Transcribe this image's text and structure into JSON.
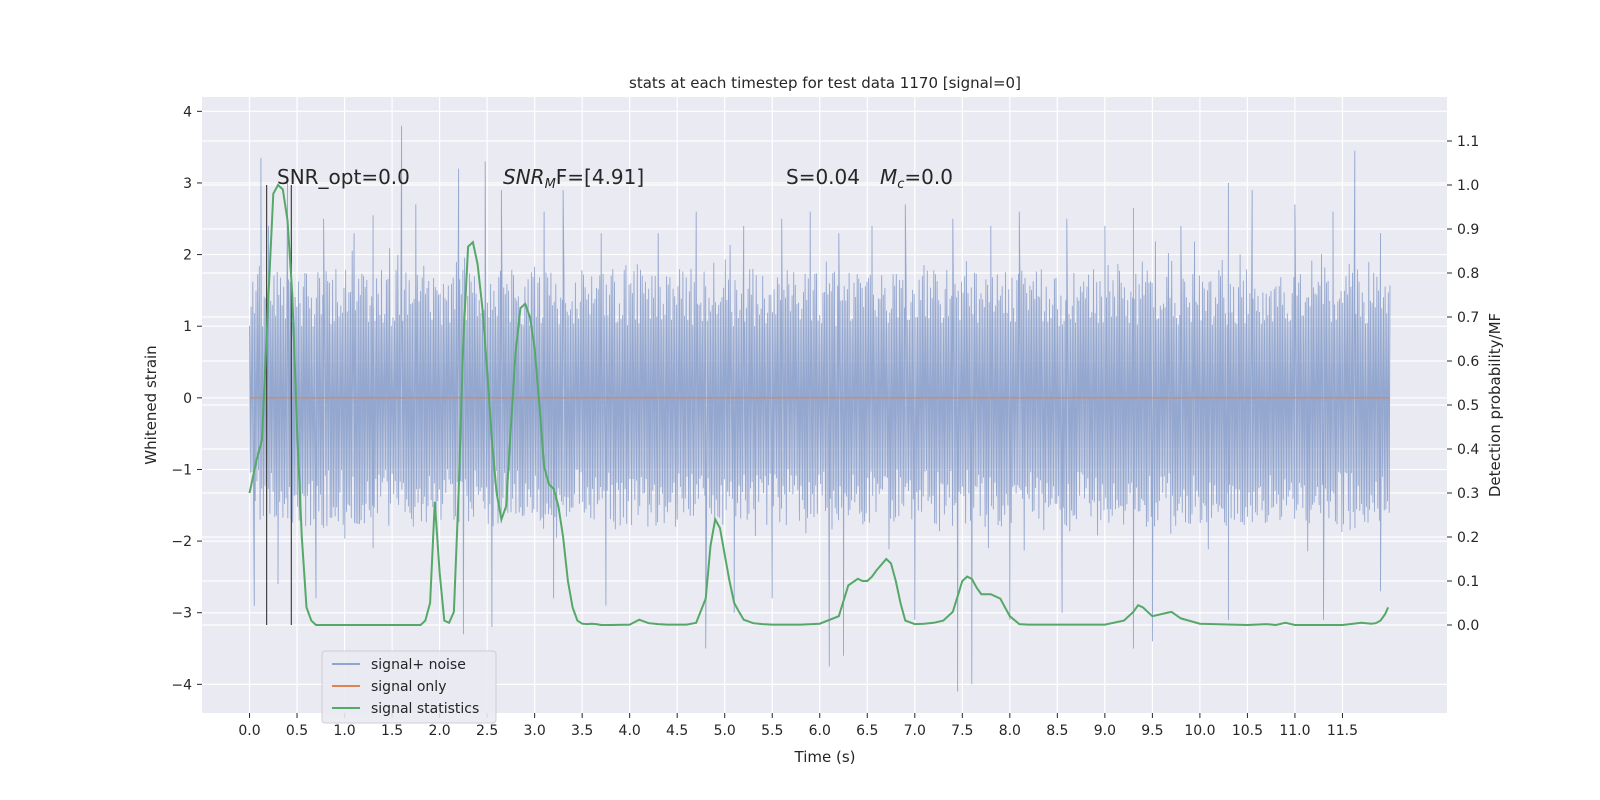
{
  "chart_data": {
    "type": "line",
    "title": "stats at each timestep for test data 1170 [signal=0]",
    "xlabel": "Time (s)",
    "ylabel": "Whitened strain",
    "y2label": "Detection probability/MF",
    "xlim": [
      -0.5,
      12.6
    ],
    "ylim": [
      -4.4,
      4.2
    ],
    "y2lim": [
      -0.2,
      1.2
    ],
    "grid": true,
    "legend_position": "lower-left",
    "x_ticks": [
      0.0,
      0.5,
      1.0,
      1.5,
      2.0,
      2.5,
      3.0,
      3.5,
      4.0,
      4.5,
      5.0,
      5.5,
      6.0,
      6.5,
      7.0,
      7.5,
      8.0,
      8.5,
      9.0,
      9.5,
      10.0,
      10.5,
      11.0,
      11.5
    ],
    "x_tick_labels": [
      "0.0",
      "0.5",
      "1.0",
      "1.5",
      "2.0",
      "2.5",
      "3.0",
      "3.5",
      "4.0",
      "4.5",
      "5.0",
      "5.5",
      "6.0",
      "6.5",
      "7.0",
      "7.5",
      "8.0",
      "8.5",
      "9.0",
      "9.5",
      "10.0",
      "10.5",
      "11.0",
      "11.5"
    ],
    "y_ticks": [
      -4,
      -3,
      -2,
      -1,
      0,
      1,
      2,
      3,
      4
    ],
    "y_tick_labels": [
      "−4",
      "−3",
      "−2",
      "−1",
      "0",
      "1",
      "2",
      "3",
      "4"
    ],
    "y2_ticks": [
      0.0,
      0.1,
      0.2,
      0.3,
      0.4,
      0.5,
      0.6,
      0.7,
      0.8,
      0.9,
      1.0,
      1.1
    ],
    "y2_tick_labels": [
      "0.0",
      "0.1",
      "0.2",
      "0.3",
      "0.4",
      "0.5",
      "0.6",
      "0.7",
      "0.8",
      "0.9",
      "1.0",
      "1.1"
    ],
    "annotations": {
      "snr_opt": "SNR_opt=0.0",
      "snr_mf_base": "SNR",
      "snr_mf_sub": "M",
      "snr_mf_rest": "F=[4.91]",
      "s_text": "S=0.04",
      "mc_base": "M",
      "mc_sub": "c",
      "mc_rest": "=0.0"
    },
    "vertical_markers_x": [
      0.18,
      0.44
    ],
    "series": [
      {
        "name": "signal+ noise",
        "color": "#8fa3cc",
        "note_range": [
          0.0,
          12.0
        ],
        "peaks": [
          [
            0.02,
            0.6
          ],
          [
            0.12,
            3.35
          ],
          [
            0.2,
            2.4
          ],
          [
            0.4,
            3.0
          ],
          [
            0.78,
            2.5
          ],
          [
            1.1,
            2.3
          ],
          [
            1.3,
            2.55
          ],
          [
            1.6,
            3.8
          ],
          [
            1.75,
            2.7
          ],
          [
            2.2,
            3.2
          ],
          [
            2.48,
            3.3
          ],
          [
            2.65,
            2.9
          ],
          [
            3.1,
            2.6
          ],
          [
            3.3,
            2.9
          ],
          [
            3.7,
            2.3
          ],
          [
            4.3,
            2.3
          ],
          [
            4.7,
            2.6
          ],
          [
            5.2,
            2.4
          ],
          [
            5.6,
            2.5
          ],
          [
            5.9,
            2.6
          ],
          [
            6.2,
            2.3
          ],
          [
            6.55,
            2.4
          ],
          [
            6.9,
            2.7
          ],
          [
            7.4,
            2.5
          ],
          [
            7.8,
            2.4
          ],
          [
            8.1,
            2.6
          ],
          [
            8.6,
            2.5
          ],
          [
            9.0,
            2.4
          ],
          [
            9.3,
            2.65
          ],
          [
            9.8,
            2.4
          ],
          [
            10.3,
            3.0
          ],
          [
            10.55,
            2.9
          ],
          [
            11.0,
            2.7
          ],
          [
            11.4,
            2.6
          ],
          [
            11.63,
            3.45
          ],
          [
            11.9,
            2.3
          ]
        ],
        "troughs": [
          [
            0.05,
            -2.9
          ],
          [
            0.3,
            -2.6
          ],
          [
            0.7,
            -2.8
          ],
          [
            1.3,
            -2.1
          ],
          [
            2.25,
            -3.3
          ],
          [
            2.55,
            -3.2
          ],
          [
            3.2,
            -2.8
          ],
          [
            3.75,
            -2.9
          ],
          [
            4.8,
            -3.5
          ],
          [
            5.1,
            -3.0
          ],
          [
            5.5,
            -2.8
          ],
          [
            6.1,
            -3.75
          ],
          [
            6.25,
            -3.6
          ],
          [
            7.0,
            -3.1
          ],
          [
            7.45,
            -4.1
          ],
          [
            7.6,
            -4.0
          ],
          [
            8.0,
            -3.1
          ],
          [
            8.55,
            -3.0
          ],
          [
            9.3,
            -3.5
          ],
          [
            9.5,
            -3.4
          ],
          [
            10.3,
            -3.1
          ],
          [
            11.3,
            -3.1
          ],
          [
            11.9,
            -2.7
          ]
        ]
      },
      {
        "name": "signal only",
        "color": "#dd8452",
        "x": [
          0.0,
          12.0
        ],
        "y": [
          0.0,
          0.0
        ]
      },
      {
        "name": "signal statistics",
        "color": "#55a868",
        "axis": "right",
        "x": [
          0.0,
          0.08,
          0.13,
          0.2,
          0.25,
          0.3,
          0.35,
          0.4,
          0.45,
          0.5,
          0.55,
          0.6,
          0.65,
          0.7,
          1.0,
          1.5,
          1.8,
          1.85,
          1.9,
          1.95,
          2.0,
          2.05,
          2.1,
          2.15,
          2.2,
          2.25,
          2.3,
          2.35,
          2.4,
          2.45,
          2.5,
          2.55,
          2.6,
          2.65,
          2.7,
          2.75,
          2.8,
          2.85,
          2.9,
          2.95,
          3.0,
          3.05,
          3.1,
          3.15,
          3.2,
          3.25,
          3.3,
          3.35,
          3.4,
          3.45,
          3.5,
          3.55,
          3.6,
          3.65,
          3.7,
          3.8,
          4.0,
          4.1,
          4.2,
          4.3,
          4.4,
          4.5,
          4.6,
          4.7,
          4.8,
          4.85,
          4.9,
          4.95,
          5.0,
          5.05,
          5.1,
          5.15,
          5.2,
          5.3,
          5.4,
          5.5,
          5.6,
          5.8,
          6.0,
          6.2,
          6.3,
          6.4,
          6.45,
          6.5,
          6.55,
          6.6,
          6.7,
          6.75,
          6.8,
          6.85,
          6.9,
          7.0,
          7.1,
          7.2,
          7.3,
          7.4,
          7.45,
          7.5,
          7.55,
          7.6,
          7.65,
          7.7,
          7.8,
          7.9,
          8.0,
          8.1,
          8.2,
          8.4,
          8.6,
          8.8,
          9.0,
          9.2,
          9.3,
          9.35,
          9.4,
          9.45,
          9.5,
          9.6,
          9.7,
          9.8,
          10.0,
          10.5,
          10.7,
          10.8,
          10.9,
          11.0,
          11.5,
          11.7,
          11.8,
          11.85,
          11.9,
          11.95,
          11.98
        ],
        "y": [
          0.3,
          0.38,
          0.42,
          0.75,
          0.98,
          1.0,
          0.99,
          0.92,
          0.75,
          0.45,
          0.2,
          0.04,
          0.01,
          0.0,
          0.0,
          0.0,
          0.0,
          0.01,
          0.05,
          0.28,
          0.12,
          0.01,
          0.005,
          0.03,
          0.3,
          0.65,
          0.86,
          0.87,
          0.82,
          0.72,
          0.58,
          0.42,
          0.3,
          0.24,
          0.27,
          0.45,
          0.62,
          0.72,
          0.73,
          0.7,
          0.63,
          0.5,
          0.36,
          0.32,
          0.31,
          0.27,
          0.2,
          0.1,
          0.04,
          0.01,
          0.003,
          0.002,
          0.003,
          0.002,
          0.0,
          0.0,
          0.001,
          0.012,
          0.004,
          0.002,
          0.001,
          0.001,
          0.001,
          0.005,
          0.06,
          0.18,
          0.24,
          0.22,
          0.16,
          0.1,
          0.05,
          0.03,
          0.012,
          0.004,
          0.002,
          0.001,
          0.001,
          0.001,
          0.003,
          0.02,
          0.09,
          0.105,
          0.1,
          0.1,
          0.11,
          0.125,
          0.15,
          0.14,
          0.1,
          0.05,
          0.01,
          0.002,
          0.003,
          0.005,
          0.01,
          0.03,
          0.065,
          0.1,
          0.11,
          0.105,
          0.085,
          0.07,
          0.07,
          0.06,
          0.02,
          0.002,
          0.001,
          0.001,
          0.001,
          0.001,
          0.001,
          0.01,
          0.03,
          0.045,
          0.04,
          0.03,
          0.02,
          0.025,
          0.03,
          0.015,
          0.003,
          0.0,
          0.002,
          0.0,
          0.005,
          0.0,
          0.0,
          0.005,
          0.003,
          0.004,
          0.01,
          0.025,
          0.04
        ]
      }
    ]
  }
}
